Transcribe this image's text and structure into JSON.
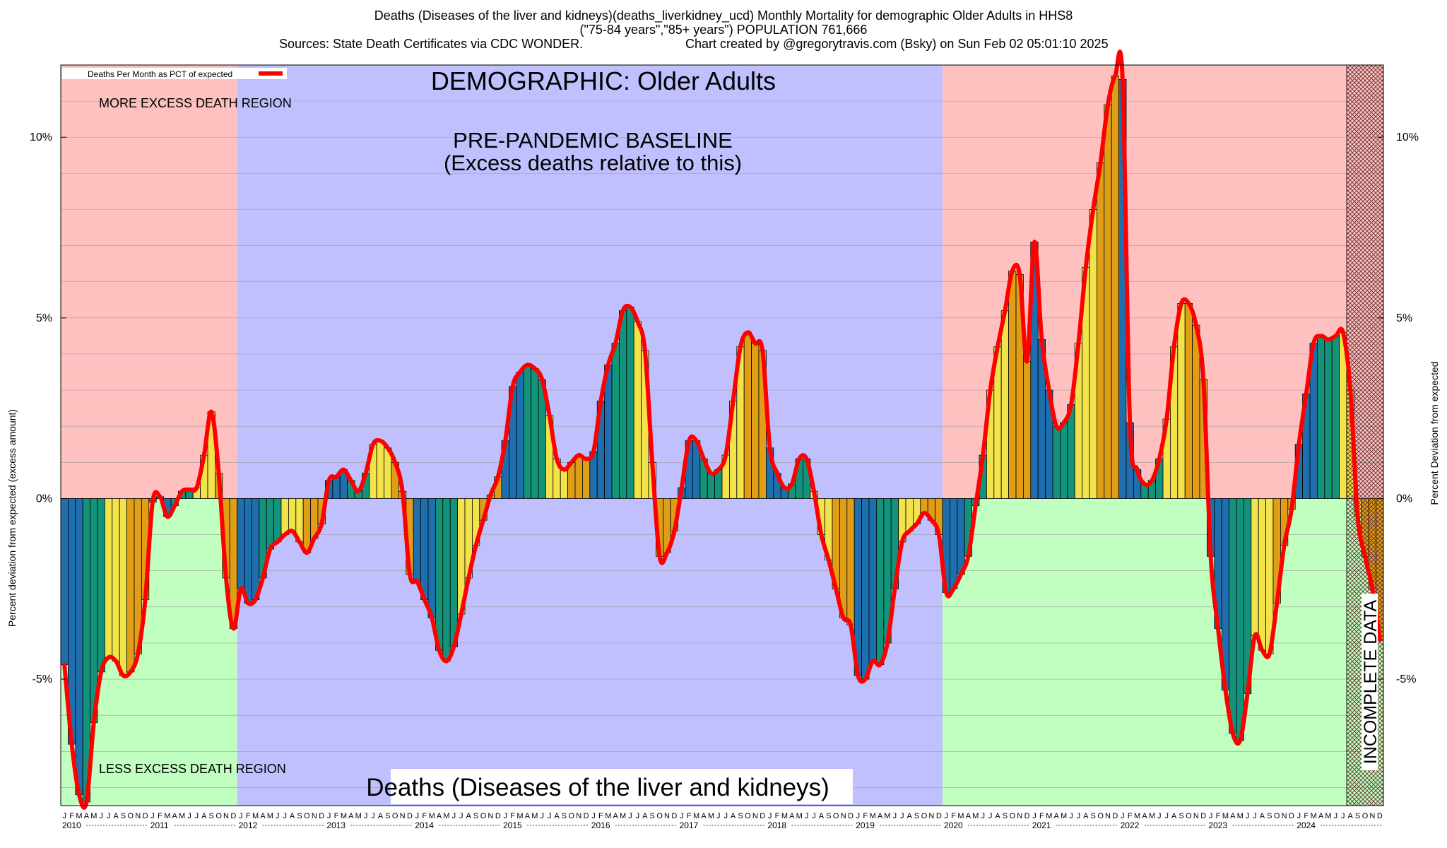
{
  "header": {
    "line1": "Deaths (Diseases of the liver and kidneys)(deaths_liverkidney_ucd) Monthly Mortality for demographic Older Adults in HHS8",
    "line2": "(\"75-84 years\",\"85+ years\") POPULATION 761,666",
    "sources": "Sources: State Death Certificates via CDC WONDER.",
    "credit": "Chart created by @gregorytravis.com (Bsky) on Sun Feb 02 05:01:10 2025"
  },
  "annotations": {
    "demographic": "DEMOGRAPHIC: Older Adults",
    "baseline_line1": "PRE-PANDEMIC BASELINE",
    "baseline_line2": "(Excess deaths relative to this)",
    "more_region": "MORE EXCESS DEATH REGION",
    "less_region": "LESS EXCESS DEATH REGION",
    "bottom_caption": "Deaths (Diseases of the liver and kidneys)",
    "incomplete": "INCOMPLETE DATA"
  },
  "colors": {
    "more_region": "#ffc0c0",
    "less_region": "#c0ffc0",
    "baseline_region": "#c0c0ff",
    "line": "#ff0000",
    "bar_cycle": [
      "#1f6fae",
      "#12937a",
      "#f2e34a",
      "#e09e17"
    ]
  },
  "chart_data": {
    "type": "bar",
    "title": "Deaths (Diseases of the liver and kidneys)(deaths_liverkidney_ucd) Monthly Mortality for demographic Older Adults in HHS8",
    "ylabel_left": "Percent deviation from expected (excess amount)",
    "ylabel_right": "Percent Deviation from expected",
    "legend": "Deaths Per Month as PCT of expected",
    "legend_position": "top-left",
    "ylim": [
      -8.5,
      12
    ],
    "yticks": [
      -5,
      0,
      5,
      10
    ],
    "ytick_labels": [
      "-5%",
      "0%",
      "5%",
      "10%"
    ],
    "grid": true,
    "month_letters": [
      "J",
      "F",
      "M",
      "A",
      "M",
      "J",
      "J",
      "A",
      "S",
      "O",
      "N",
      "D"
    ],
    "years": [
      "2010",
      "2011",
      "2012",
      "2013",
      "2014",
      "2015",
      "2016",
      "2017",
      "2018",
      "2019",
      "2020",
      "2021",
      "2022",
      "2023",
      "2024"
    ],
    "baseline_period": [
      "2012-01",
      "2019-12"
    ],
    "incomplete_period": [
      "2024-08",
      "2024-12"
    ],
    "values": [
      -4.6,
      -6.8,
      -8.2,
      -8.4,
      -6.2,
      -4.8,
      -4.4,
      -4.5,
      -4.9,
      -4.8,
      -4.3,
      -2.8,
      -0.1,
      0.05,
      -0.5,
      -0.2,
      0.2,
      0.25,
      0.3,
      1.2,
      2.4,
      0.7,
      -2.2,
      -3.6,
      -2.5,
      -2.9,
      -2.8,
      -2.2,
      -1.4,
      -1.2,
      -1.0,
      -0.9,
      -1.2,
      -1.5,
      -1.1,
      -0.7,
      0.5,
      0.6,
      0.8,
      0.5,
      0.2,
      0.7,
      1.5,
      1.6,
      1.4,
      1.0,
      0.2,
      -2.1,
      -2.3,
      -2.8,
      -3.3,
      -4.2,
      -4.5,
      -4.1,
      -3.2,
      -2.2,
      -1.3,
      -0.6,
      0.1,
      0.6,
      1.6,
      3.1,
      3.5,
      3.7,
      3.6,
      3.3,
      2.3,
      1.1,
      0.8,
      1.0,
      1.2,
      1.1,
      1.3,
      2.7,
      3.7,
      4.3,
      5.2,
      5.3,
      4.9,
      4.1,
      1.0,
      -1.6,
      -1.5,
      -0.9,
      0.3,
      1.6,
      1.6,
      1.1,
      0.7,
      0.8,
      1.2,
      2.7,
      4.2,
      4.6,
      4.3,
      4.1,
      1.4,
      0.7,
      0.3,
      0.4,
      1.1,
      1.1,
      0.2,
      -1.0,
      -1.7,
      -2.5,
      -3.3,
      -3.5,
      -4.9,
      -5.0,
      -4.5,
      -4.6,
      -4.0,
      -2.5,
      -1.2,
      -0.9,
      -0.7,
      -0.4,
      -0.6,
      -1.0,
      -2.6,
      -2.5,
      -2.1,
      -1.6,
      -0.2,
      1.2,
      3.0,
      4.2,
      5.2,
      6.3,
      6.2,
      3.8,
      7.1,
      4.4,
      3.0,
      2.0,
      2.1,
      2.6,
      4.3,
      6.4,
      8.0,
      9.3,
      10.9,
      11.7,
      11.6,
      2.1,
      0.8,
      0.4,
      0.5,
      1.1,
      2.2,
      4.2,
      5.4,
      5.4,
      4.8,
      3.3,
      -1.6,
      -3.6,
      -5.3,
      -6.5,
      -6.7,
      -5.4,
      -3.8,
      -4.2,
      -4.3,
      -2.9,
      -1.3,
      -0.3,
      1.5,
      2.9,
      4.3,
      4.5,
      4.4,
      4.5,
      4.6,
      3.0,
      -0.5,
      -1.6,
      -2.5,
      -3.9
    ]
  }
}
